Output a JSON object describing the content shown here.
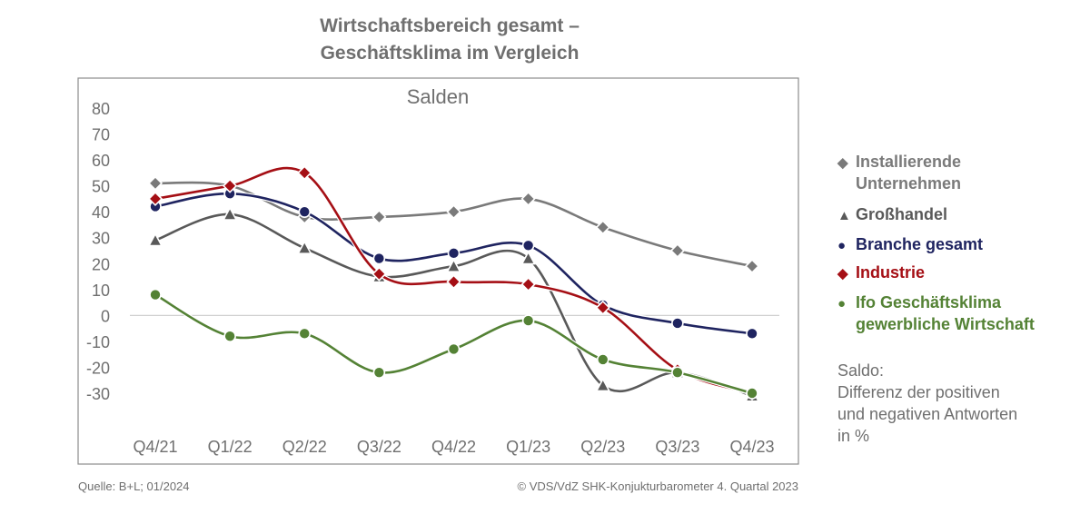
{
  "chart_data": {
    "type": "line",
    "title": [
      "Wirtschaftsbereich gesamt –",
      "Geschäftsklima im Vergleich"
    ],
    "subtitle": "Salden",
    "categories": [
      "Q4/21",
      "Q1/22",
      "Q2/22",
      "Q3/22",
      "Q4/22",
      "Q1/23",
      "Q2/23",
      "Q3/23",
      "Q4/23"
    ],
    "y_ticks": [
      "80",
      "70",
      "60",
      "50",
      "40",
      "30",
      "20",
      "10",
      "0",
      "-10",
      "-20",
      "-30"
    ],
    "ylim": [
      -30,
      80
    ],
    "grid": false,
    "legend_position": "right",
    "series": [
      {
        "name": "Installierende Unternehmen",
        "label_lines": [
          "Installierende",
          "Unternehmen"
        ],
        "marker": "diamond",
        "color": "#7a7a7a",
        "values": [
          51,
          50,
          38,
          38,
          40,
          45,
          34,
          25,
          19
        ]
      },
      {
        "name": "Großhandel",
        "label_lines": [
          "Großhandel"
        ],
        "marker": "triangle",
        "color": "#595959",
        "values": [
          29,
          39,
          26,
          15,
          19,
          22,
          -27,
          -22,
          -31
        ]
      },
      {
        "name": "Branche gesamt",
        "label_lines": [
          "Branche gesamt"
        ],
        "marker": "circle",
        "color": "#1f2460",
        "values": [
          42,
          47,
          40,
          22,
          24,
          27,
          4,
          -3,
          -7
        ]
      },
      {
        "name": "Industrie",
        "label_lines": [
          "Industrie"
        ],
        "marker": "diamond",
        "color": "#a50f15",
        "values": [
          45,
          50,
          55,
          16,
          13,
          12,
          3,
          -21,
          -30
        ]
      },
      {
        "name": "Ifo Geschäftsklima gewerbliche Wirtschaft",
        "label_lines": [
          "Ifo Geschäftsklima",
          "gewerbliche Wirtschaft"
        ],
        "marker": "circle",
        "color": "#548235",
        "values": [
          8,
          -8,
          -7,
          -22,
          -13,
          -2,
          -17,
          -22,
          -30
        ]
      }
    ]
  },
  "legend_symbols": {
    "diamond": "◆",
    "triangle": "▲",
    "circle": "●"
  },
  "note_lines": [
    "Saldo:",
    "Differenz der positiven",
    "und negativen Antworten",
    "in %"
  ],
  "footer": {
    "source": "Quelle: B+L; 01/2024",
    "copyright": "© VDS/VdZ SHK-Konjukturbarometer 4. Quartal 2023"
  }
}
